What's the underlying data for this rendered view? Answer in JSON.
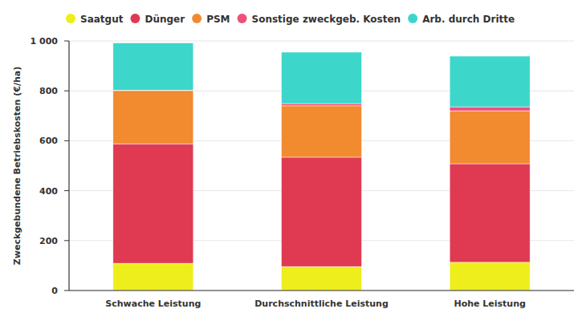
{
  "chart_data": {
    "type": "bar",
    "stacked": true,
    "y_label": "Zweckgebundene Betriebskosten (€/ha)",
    "categories": [
      "Schwache Leistung",
      "Durchschnittliche Leistung",
      "Hohe Leistung"
    ],
    "series": [
      {
        "name": "Saatgut",
        "color": "#eeee1c",
        "values": [
          109,
          96,
          113
        ]
      },
      {
        "name": "Dünger",
        "color": "#e03a52",
        "values": [
          479,
          438,
          395
        ]
      },
      {
        "name": "PSM",
        "color": "#f28a30",
        "values": [
          213,
          206,
          212
        ]
      },
      {
        "name": "Sonstige zweckgeb. Kosten",
        "color": "#f0507a",
        "values": [
          2,
          9,
          16
        ]
      },
      {
        "name": "Arb. durch Dritte",
        "color": "#3dd6cb",
        "values": [
          189,
          206,
          203
        ]
      }
    ],
    "ylim": [
      0,
      1000
    ],
    "yticks": [
      0,
      200,
      400,
      600,
      800,
      {
        "value": 1000,
        "label": "1 000"
      }
    ],
    "grid": true,
    "legend": "top"
  }
}
